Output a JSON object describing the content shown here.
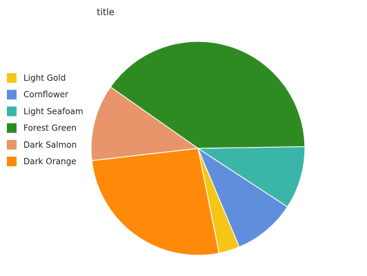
{
  "chart_data": {
    "type": "pie",
    "title": "title",
    "legend_position": "left",
    "slices": [
      {
        "label": "Light Gold",
        "value": 3,
        "color": "#f5c518"
      },
      {
        "label": "Cornflower",
        "value": 9,
        "color": "#5f8fdc"
      },
      {
        "label": "Light Seafoam",
        "value": 9,
        "color": "#3cb5a9"
      },
      {
        "label": "Forest Green",
        "value": 38,
        "color": "#2e8b22"
      },
      {
        "label": "Dark Salmon",
        "value": 11,
        "color": "#e8956b"
      },
      {
        "label": "Dark Orange",
        "value": 25,
        "color": "#ff8a0a"
      }
    ]
  }
}
